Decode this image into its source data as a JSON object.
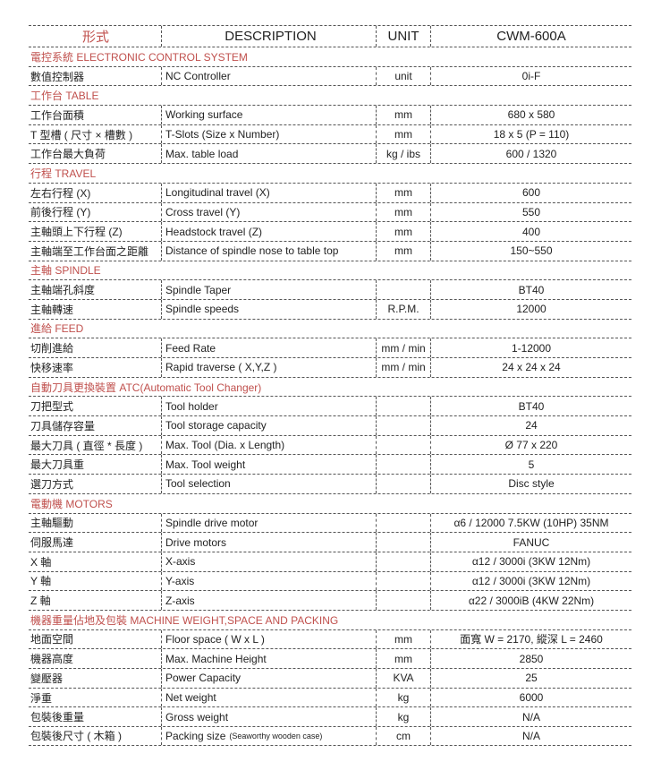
{
  "header": {
    "col1": "形式",
    "col2": "DESCRIPTION",
    "col3": "UNIT",
    "col4": "CWM-600A"
  },
  "sections": [
    {
      "title": "電控系統 ELECTRONIC CONTROL SYSTEM",
      "rows": [
        [
          "數值控制器",
          "NC Controller",
          "unit",
          "0i-F"
        ]
      ]
    },
    {
      "title": "工作台 TABLE",
      "rows": [
        [
          "工作台面積",
          "Working surface",
          "mm",
          "680 x 580"
        ],
        [
          "T 型槽 ( 尺寸 × 槽數 )",
          "T-Slots (Size x Number)",
          "mm",
          "18 x 5 (P = 110)"
        ],
        [
          "工作台最大負荷",
          "Max. table load",
          "kg / ibs",
          "600 / 1320"
        ]
      ]
    },
    {
      "title": "行程 TRAVEL",
      "rows": [
        [
          "左右行程 (X)",
          "Longitudinal travel (X)",
          "mm",
          "600"
        ],
        [
          "前後行程 (Y)",
          "Cross travel (Y)",
          "mm",
          "550"
        ],
        [
          "主軸頭上下行程 (Z)",
          "Headstock travel (Z)",
          "mm",
          "400"
        ],
        [
          "主軸端至工作台面之距離",
          "Distance of spindle nose to table top",
          "mm",
          "150~550"
        ]
      ]
    },
    {
      "title": "主軸 SPINDLE",
      "rows": [
        [
          "主軸端孔斜度",
          "Spindle Taper",
          "",
          "BT40"
        ],
        [
          "主軸轉速",
          "Spindle speeds",
          "R.P.M.",
          "12000"
        ]
      ]
    },
    {
      "title": "進給 FEED",
      "rows": [
        [
          "切削進給",
          "Feed Rate",
          "mm / min",
          "1-12000"
        ],
        [
          "快移速率",
          "Rapid traverse ( X,Y,Z )",
          "mm / min",
          "24 x 24 x 24"
        ]
      ]
    },
    {
      "title": "自動刀具更換裝置 ATC(Automatic Tool Changer)",
      "rows": [
        [
          "刀把型式",
          "Tool holder",
          "",
          "BT40"
        ],
        [
          "刀具儲存容量",
          "Tool storage capacity",
          "",
          "24"
        ],
        [
          "最大刀具 ( 直徑 * 長度 )",
          "Max. Tool (Dia. x Length)",
          "",
          "Ø 77 x 220"
        ],
        [
          "最大刀具重",
          "Max. Tool weight",
          "",
          "5"
        ],
        [
          "選刀方式",
          "Tool selection",
          "",
          "Disc style"
        ]
      ]
    },
    {
      "title": "電動機 MOTORS",
      "rows": [
        [
          "主軸驅動",
          "Spindle drive motor",
          "",
          "α6 / 12000 7.5KW (10HP) 35NM"
        ],
        [
          "伺服馬達",
          "Drive motors",
          "",
          "FANUC"
        ],
        [
          "X 軸",
          "X-axis",
          "",
          "α12 / 3000i   (3KW 12Nm)"
        ],
        [
          "Y 軸",
          "Y-axis",
          "",
          "α12 / 3000i   (3KW 12Nm)"
        ],
        [
          "Z 軸",
          "Z-axis",
          "",
          "α22 / 3000iB (4KW 22Nm)"
        ]
      ]
    },
    {
      "title": "機器重量佔地及包裝 MACHINE WEIGHT,SPACE AND PACKING",
      "rows": [
        [
          "地面空間",
          "Floor space ( W x L )",
          "mm",
          "面寬 W = 2170, 縱深 L = 2460"
        ],
        [
          "機器高度",
          "Max. Machine Height",
          "mm",
          "2850"
        ],
        [
          "變壓器",
          "Power Capacity",
          "KVA",
          "25"
        ],
        [
          "淨重",
          "Net weight",
          "kg",
          "6000"
        ],
        [
          "包裝後重量",
          "Gross weight",
          "kg",
          "N/A"
        ],
        [
          "包裝後尺寸 ( 木箱 )",
          "Packing size",
          "cm",
          "N/A"
        ]
      ]
    }
  ],
  "packing_note": "(Seaworthy wooden case)"
}
